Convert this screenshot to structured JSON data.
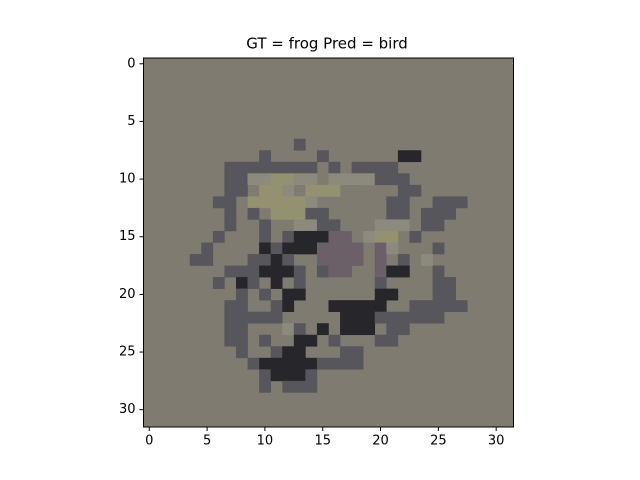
{
  "chart_data": {
    "type": "image",
    "title": "GT = frog Pred = bird",
    "xlim": [
      -0.5,
      31.5
    ],
    "ylim": [
      31.5,
      -0.5
    ],
    "xticks": [
      0,
      5,
      10,
      15,
      20,
      25,
      30
    ],
    "yticks": [
      0,
      5,
      10,
      15,
      20,
      25,
      30
    ],
    "background": "#7f7b71",
    "pixels": [
      [
        13,
        7,
        "#57565d"
      ],
      [
        10,
        8,
        "#57565d"
      ],
      [
        15,
        8,
        "#57565d"
      ],
      [
        22,
        8,
        "#26262b"
      ],
      [
        23,
        8,
        "#26262b"
      ],
      [
        7,
        9,
        "#57565d"
      ],
      [
        8,
        9,
        "#57565d"
      ],
      [
        9,
        9,
        "#57565d"
      ],
      [
        10,
        9,
        "#57565d"
      ],
      [
        11,
        9,
        "#57565d"
      ],
      [
        12,
        9,
        "#57565d"
      ],
      [
        13,
        9,
        "#57565d"
      ],
      [
        14,
        9,
        "#57565d"
      ],
      [
        16,
        9,
        "#57565d"
      ],
      [
        18,
        9,
        "#57565d"
      ],
      [
        19,
        9,
        "#57565d"
      ],
      [
        20,
        9,
        "#57565d"
      ],
      [
        21,
        9,
        "#57565d"
      ],
      [
        7,
        10,
        "#57565d"
      ],
      [
        8,
        10,
        "#57565d"
      ],
      [
        9,
        10,
        "#8c8a7c"
      ],
      [
        10,
        10,
        "#8c8a7c"
      ],
      [
        11,
        10,
        "#939170"
      ],
      [
        12,
        10,
        "#939170"
      ],
      [
        13,
        10,
        "#8c8a7c"
      ],
      [
        14,
        10,
        "#8c8a7c"
      ],
      [
        16,
        10,
        "#8c8a7c"
      ],
      [
        17,
        10,
        "#8c8a7c"
      ],
      [
        18,
        10,
        "#8c8a7c"
      ],
      [
        19,
        10,
        "#8c8a7c"
      ],
      [
        20,
        10,
        "#57565d"
      ],
      [
        21,
        10,
        "#57565d"
      ],
      [
        22,
        10,
        "#57565d"
      ],
      [
        7,
        11,
        "#57565d"
      ],
      [
        8,
        11,
        "#57565d"
      ],
      [
        10,
        11,
        "#939170"
      ],
      [
        11,
        11,
        "#939170"
      ],
      [
        12,
        11,
        "#8c8a7c"
      ],
      [
        14,
        11,
        "#939170"
      ],
      [
        15,
        11,
        "#939170"
      ],
      [
        16,
        11,
        "#939170"
      ],
      [
        22,
        11,
        "#57565d"
      ],
      [
        23,
        11,
        "#57565d"
      ],
      [
        6,
        12,
        "#57565d"
      ],
      [
        7,
        12,
        "#57565d"
      ],
      [
        9,
        12,
        "#939170"
      ],
      [
        10,
        12,
        "#939170"
      ],
      [
        11,
        12,
        "#939170"
      ],
      [
        12,
        12,
        "#939170"
      ],
      [
        13,
        12,
        "#939170"
      ],
      [
        14,
        12,
        "#8c8a7c"
      ],
      [
        21,
        12,
        "#57565d"
      ],
      [
        22,
        12,
        "#57565d"
      ],
      [
        25,
        12,
        "#57565d"
      ],
      [
        26,
        12,
        "#57565d"
      ],
      [
        27,
        12,
        "#57565d"
      ],
      [
        7,
        13,
        "#57565d"
      ],
      [
        9,
        13,
        "#57565d"
      ],
      [
        11,
        13,
        "#939170"
      ],
      [
        12,
        13,
        "#939170"
      ],
      [
        13,
        13,
        "#939170"
      ],
      [
        14,
        13,
        "#57565d"
      ],
      [
        15,
        13,
        "#57565d"
      ],
      [
        21,
        13,
        "#57565d"
      ],
      [
        22,
        13,
        "#57565d"
      ],
      [
        24,
        13,
        "#57565d"
      ],
      [
        25,
        13,
        "#57565d"
      ],
      [
        26,
        13,
        "#57565d"
      ],
      [
        7,
        14,
        "#57565d"
      ],
      [
        10,
        14,
        "#57565d"
      ],
      [
        13,
        14,
        "#8c8a7c"
      ],
      [
        14,
        14,
        "#8c8a7c"
      ],
      [
        15,
        14,
        "#57565d"
      ],
      [
        16,
        14,
        "#57565d"
      ],
      [
        20,
        14,
        "#8c8a7c"
      ],
      [
        21,
        14,
        "#8c8a7c"
      ],
      [
        22,
        14,
        "#8c8a7c"
      ],
      [
        24,
        14,
        "#57565d"
      ],
      [
        25,
        14,
        "#57565d"
      ],
      [
        6,
        15,
        "#57565d"
      ],
      [
        10,
        15,
        "#57565d"
      ],
      [
        12,
        15,
        "#57565d"
      ],
      [
        13,
        15,
        "#26262b"
      ],
      [
        14,
        15,
        "#26262b"
      ],
      [
        15,
        15,
        "#26262b"
      ],
      [
        16,
        15,
        "#6c6068"
      ],
      [
        17,
        15,
        "#6c6068"
      ],
      [
        19,
        15,
        "#8c8a7c"
      ],
      [
        20,
        15,
        "#939170"
      ],
      [
        21,
        15,
        "#939170"
      ],
      [
        23,
        15,
        "#57565d"
      ],
      [
        5,
        16,
        "#57565d"
      ],
      [
        10,
        16,
        "#26262b"
      ],
      [
        11,
        16,
        "#57565d"
      ],
      [
        12,
        16,
        "#26262b"
      ],
      [
        13,
        16,
        "#26262b"
      ],
      [
        14,
        16,
        "#26262b"
      ],
      [
        15,
        16,
        "#6c6068"
      ],
      [
        16,
        16,
        "#6c6068"
      ],
      [
        17,
        16,
        "#6c6068"
      ],
      [
        18,
        16,
        "#6c6068"
      ],
      [
        20,
        16,
        "#6c6068"
      ],
      [
        21,
        16,
        "#8c8a7c"
      ],
      [
        25,
        16,
        "#57565d"
      ],
      [
        4,
        17,
        "#57565d"
      ],
      [
        5,
        17,
        "#57565d"
      ],
      [
        9,
        17,
        "#57565d"
      ],
      [
        10,
        17,
        "#57565d"
      ],
      [
        11,
        17,
        "#26262b"
      ],
      [
        12,
        17,
        "#57565d"
      ],
      [
        15,
        17,
        "#6c6068"
      ],
      [
        16,
        17,
        "#6c6068"
      ],
      [
        17,
        17,
        "#6c6068"
      ],
      [
        18,
        17,
        "#6c6068"
      ],
      [
        20,
        17,
        "#6c6068"
      ],
      [
        22,
        17,
        "#57565d"
      ],
      [
        24,
        17,
        "#8c8a7c"
      ],
      [
        7,
        18,
        "#57565d"
      ],
      [
        8,
        18,
        "#57565d"
      ],
      [
        9,
        18,
        "#57565d"
      ],
      [
        10,
        18,
        "#26262b"
      ],
      [
        11,
        18,
        "#26262b"
      ],
      [
        12,
        18,
        "#26262b"
      ],
      [
        13,
        18,
        "#57565d"
      ],
      [
        15,
        18,
        "#57565d"
      ],
      [
        16,
        18,
        "#6c6068"
      ],
      [
        17,
        18,
        "#6c6068"
      ],
      [
        20,
        18,
        "#6c6068"
      ],
      [
        21,
        18,
        "#26262b"
      ],
      [
        22,
        18,
        "#26262b"
      ],
      [
        25,
        18,
        "#57565d"
      ],
      [
        6,
        19,
        "#57565d"
      ],
      [
        8,
        19,
        "#26262b"
      ],
      [
        9,
        19,
        "#57565d"
      ],
      [
        11,
        19,
        "#26262b"
      ],
      [
        13,
        19,
        "#57565d"
      ],
      [
        20,
        19,
        "#57565d"
      ],
      [
        25,
        19,
        "#57565d"
      ],
      [
        26,
        19,
        "#57565d"
      ],
      [
        8,
        20,
        "#57565d"
      ],
      [
        10,
        20,
        "#57565d"
      ],
      [
        12,
        20,
        "#26262b"
      ],
      [
        13,
        20,
        "#26262b"
      ],
      [
        20,
        20,
        "#26262b"
      ],
      [
        21,
        20,
        "#26262b"
      ],
      [
        25,
        20,
        "#57565d"
      ],
      [
        26,
        20,
        "#57565d"
      ],
      [
        7,
        21,
        "#57565d"
      ],
      [
        8,
        21,
        "#57565d"
      ],
      [
        11,
        21,
        "#57565d"
      ],
      [
        12,
        21,
        "#26262b"
      ],
      [
        16,
        21,
        "#26262b"
      ],
      [
        17,
        21,
        "#26262b"
      ],
      [
        18,
        21,
        "#26262b"
      ],
      [
        19,
        21,
        "#26262b"
      ],
      [
        20,
        21,
        "#26262b"
      ],
      [
        23,
        21,
        "#57565d"
      ],
      [
        24,
        21,
        "#57565d"
      ],
      [
        25,
        21,
        "#57565d"
      ],
      [
        26,
        21,
        "#57565d"
      ],
      [
        27,
        21,
        "#57565d"
      ],
      [
        7,
        22,
        "#57565d"
      ],
      [
        8,
        22,
        "#57565d"
      ],
      [
        9,
        22,
        "#57565d"
      ],
      [
        10,
        22,
        "#57565d"
      ],
      [
        11,
        22,
        "#57565d"
      ],
      [
        17,
        22,
        "#26262b"
      ],
      [
        18,
        22,
        "#26262b"
      ],
      [
        19,
        22,
        "#26262b"
      ],
      [
        20,
        22,
        "#57565d"
      ],
      [
        21,
        22,
        "#57565d"
      ],
      [
        22,
        22,
        "#57565d"
      ],
      [
        23,
        22,
        "#57565d"
      ],
      [
        24,
        22,
        "#57565d"
      ],
      [
        25,
        22,
        "#57565d"
      ],
      [
        7,
        23,
        "#57565d"
      ],
      [
        8,
        23,
        "#57565d"
      ],
      [
        12,
        23,
        "#8c8a7c"
      ],
      [
        13,
        23,
        "#57565d"
      ],
      [
        15,
        23,
        "#26262b"
      ],
      [
        17,
        23,
        "#26262b"
      ],
      [
        18,
        23,
        "#26262b"
      ],
      [
        19,
        23,
        "#26262b"
      ],
      [
        21,
        23,
        "#57565d"
      ],
      [
        22,
        23,
        "#57565d"
      ],
      [
        7,
        24,
        "#57565d"
      ],
      [
        8,
        24,
        "#57565d"
      ],
      [
        10,
        24,
        "#57565d"
      ],
      [
        13,
        24,
        "#26262b"
      ],
      [
        14,
        24,
        "#26262b"
      ],
      [
        16,
        24,
        "#57565d"
      ],
      [
        20,
        24,
        "#57565d"
      ],
      [
        21,
        24,
        "#57565d"
      ],
      [
        8,
        25,
        "#57565d"
      ],
      [
        11,
        25,
        "#57565d"
      ],
      [
        12,
        25,
        "#26262b"
      ],
      [
        13,
        25,
        "#26262b"
      ],
      [
        17,
        25,
        "#57565d"
      ],
      [
        18,
        25,
        "#57565d"
      ],
      [
        9,
        26,
        "#57565d"
      ],
      [
        10,
        26,
        "#26262b"
      ],
      [
        11,
        26,
        "#26262b"
      ],
      [
        12,
        26,
        "#26262b"
      ],
      [
        13,
        26,
        "#26262b"
      ],
      [
        14,
        26,
        "#26262b"
      ],
      [
        15,
        26,
        "#57565d"
      ],
      [
        16,
        26,
        "#57565d"
      ],
      [
        17,
        26,
        "#57565d"
      ],
      [
        18,
        26,
        "#57565d"
      ],
      [
        10,
        27,
        "#57565d"
      ],
      [
        11,
        27,
        "#26262b"
      ],
      [
        12,
        27,
        "#26262b"
      ],
      [
        13,
        27,
        "#26262b"
      ],
      [
        14,
        27,
        "#57565d"
      ],
      [
        10,
        28,
        "#57565d"
      ],
      [
        12,
        28,
        "#57565d"
      ],
      [
        13,
        28,
        "#57565d"
      ],
      [
        14,
        28,
        "#57565d"
      ]
    ]
  }
}
